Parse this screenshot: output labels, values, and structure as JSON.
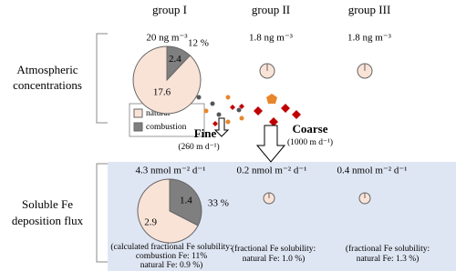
{
  "columns": [
    "group I",
    "group II",
    "group III"
  ],
  "rows": [
    {
      "label_lines": [
        "Atmospheric",
        "concentrations"
      ]
    },
    {
      "label_lines": [
        "Soluble Fe",
        "deposition flux"
      ]
    }
  ],
  "concentrations": {
    "amounts": [
      "20 ng m⁻³",
      "1.8 ng m⁻³",
      "1.8 ng m⁻³"
    ],
    "pie": {
      "combustion": 2.4,
      "natural": 17.6,
      "combustion_share": "12 %"
    }
  },
  "legend": {
    "natural": {
      "label": "natural",
      "color": "#f9e3d7",
      "text_color": "#e8862c"
    },
    "combustion": {
      "label": "combustion",
      "color": "#7f7f7f"
    }
  },
  "fine": {
    "label": "Fine",
    "speed": "(260 m d⁻¹)"
  },
  "coarse": {
    "label": "Coarse",
    "speed": "(1000 m d⁻¹)"
  },
  "flux": {
    "amounts": [
      "4.3 nmol m⁻² d⁻¹",
      "0.2 nmol m⁻² d⁻¹",
      "0.4 nmol m⁻² d⁻¹"
    ],
    "pie": {
      "combustion": 1.4,
      "natural": 2.9,
      "combustion_share": "33 %"
    },
    "notes": [
      [
        "(calculated fractional Fe solubility:",
        "combustion Fe: 11%",
        "natural Fe: 0.9 %)"
      ],
      [
        "(fractional Fe solubility:",
        "natural Fe: 1.0 %)"
      ],
      [
        "(fractional Fe solubility:",
        "natural Fe: 1.3 %)"
      ]
    ]
  }
}
